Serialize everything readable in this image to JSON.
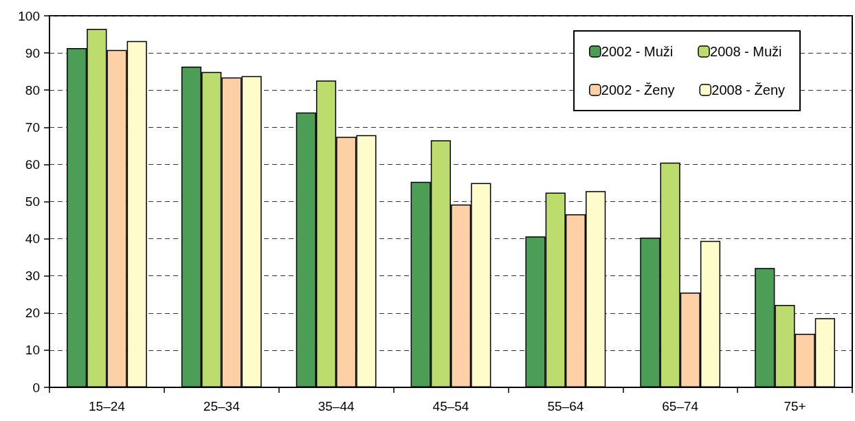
{
  "chart_data": {
    "type": "bar",
    "categories": [
      "15–24",
      "25–34",
      "35–44",
      "45–54",
      "55–64",
      "65–74",
      "75+"
    ],
    "series": [
      {
        "name": "2002 - Muži",
        "color": "#4c9e56",
        "values": [
          91.3,
          86.3,
          74.0,
          55.3,
          40.6,
          40.3,
          32.1
        ]
      },
      {
        "name": "2008 - Muži",
        "color": "#bcdc6e",
        "values": [
          96.5,
          84.9,
          82.6,
          66.5,
          52.4,
          60.5,
          22.2
        ]
      },
      {
        "name": "2002 - Ženy",
        "color": "#fdd0a6",
        "values": [
          90.8,
          83.4,
          67.4,
          49.2,
          46.6,
          25.5,
          14.4
        ]
      },
      {
        "name": "2008 - Ženy",
        "color": "#fefccb",
        "values": [
          93.2,
          83.8,
          67.9,
          55.0,
          52.8,
          39.4,
          18.6
        ]
      }
    ],
    "ylim": [
      0,
      100
    ],
    "yticks": [
      0,
      10,
      20,
      30,
      40,
      50,
      60,
      70,
      80,
      90,
      100
    ],
    "grid": "y",
    "legend": "top right"
  }
}
